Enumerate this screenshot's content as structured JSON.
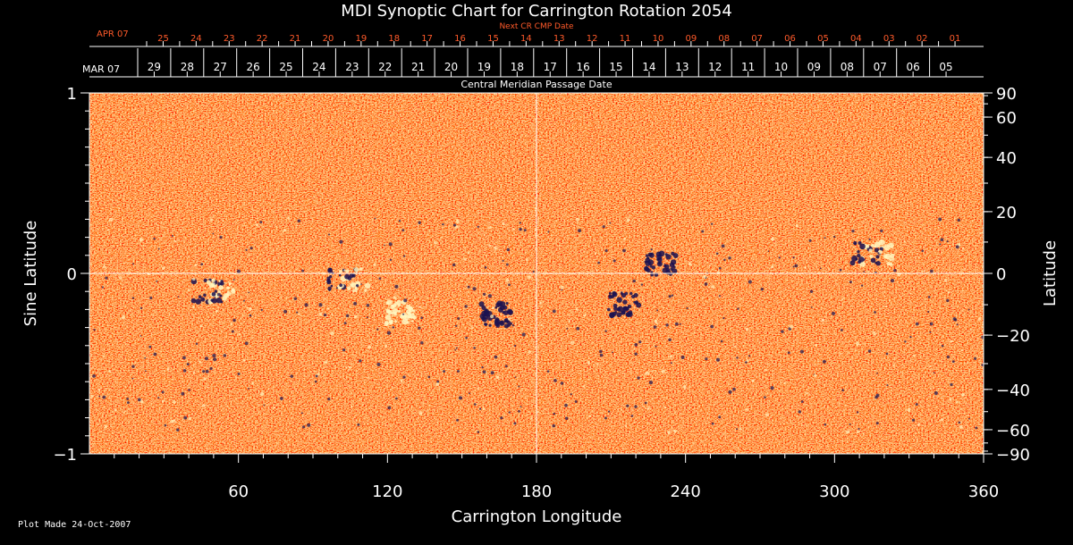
{
  "chart_data": {
    "type": "heatmap",
    "title": "MDI Synoptic Chart for Carrington Rotation 2054",
    "xlabel": "Carrington Longitude",
    "ylabel_left": "Sine Latitude",
    "ylabel_right": "Latitude",
    "xlim": [
      0,
      360
    ],
    "ylim": [
      -1,
      1
    ],
    "x_ticks": [
      60,
      120,
      180,
      240,
      300,
      360
    ],
    "y_ticks_left": [
      {
        "value": 1,
        "label": "1"
      },
      {
        "value": 0,
        "label": "0"
      },
      {
        "value": -1,
        "label": "−1"
      }
    ],
    "y_ticks_right": [
      {
        "deg": 90,
        "label": "90"
      },
      {
        "deg": 60,
        "label": "60"
      },
      {
        "deg": 40,
        "label": "40"
      },
      {
        "deg": 20,
        "label": "20"
      },
      {
        "deg": 0,
        "label": "0"
      },
      {
        "deg": -20,
        "label": "−20"
      },
      {
        "deg": -40,
        "label": "−40"
      },
      {
        "deg": -60,
        "label": "−60"
      },
      {
        "deg": -90,
        "label": "−90"
      }
    ],
    "grid_lines": {
      "longitude": 180,
      "sine_latitude": 0
    },
    "cmp_axis": {
      "label": "Central Meridian Passage Date",
      "month_label": "MAR 07",
      "days": [
        "29",
        "28",
        "27",
        "26",
        "25",
        "24",
        "23",
        "22",
        "21",
        "20",
        "19",
        "18",
        "17",
        "16",
        "15",
        "14",
        "13",
        "12",
        "11",
        "10",
        "09",
        "08",
        "07",
        "06",
        "05"
      ]
    },
    "next_cr_axis": {
      "label": "Next CR CMP Date",
      "month_label": "APR 07",
      "days": [
        "25",
        "24",
        "23",
        "22",
        "21",
        "20",
        "19",
        "18",
        "17",
        "16",
        "15",
        "14",
        "13",
        "12",
        "11",
        "10",
        "09",
        "08",
        "07",
        "06",
        "05",
        "04",
        "03",
        "02",
        "01"
      ]
    },
    "colors": {
      "background": "#000000",
      "field_base": "#e8551a",
      "positive": "#fff7c0",
      "negative": "#1a1250",
      "next_cr": "#ff5a2a"
    },
    "features": [
      {
        "lon": 50,
        "sinlat": -0.1,
        "polarity": "bipolar"
      },
      {
        "lon": 104,
        "sinlat": -0.04,
        "polarity": "bipolar"
      },
      {
        "lon": 125,
        "sinlat": -0.22,
        "polarity": "positive"
      },
      {
        "lon": 164,
        "sinlat": -0.23,
        "polarity": "negative"
      },
      {
        "lon": 230,
        "sinlat": 0.05,
        "polarity": "negative"
      },
      {
        "lon": 215,
        "sinlat": -0.17,
        "polarity": "negative"
      },
      {
        "lon": 315,
        "sinlat": 0.11,
        "polarity": "bipolar"
      }
    ]
  },
  "footer": {
    "plot_made": "Plot Made 24-Oct-2007"
  }
}
